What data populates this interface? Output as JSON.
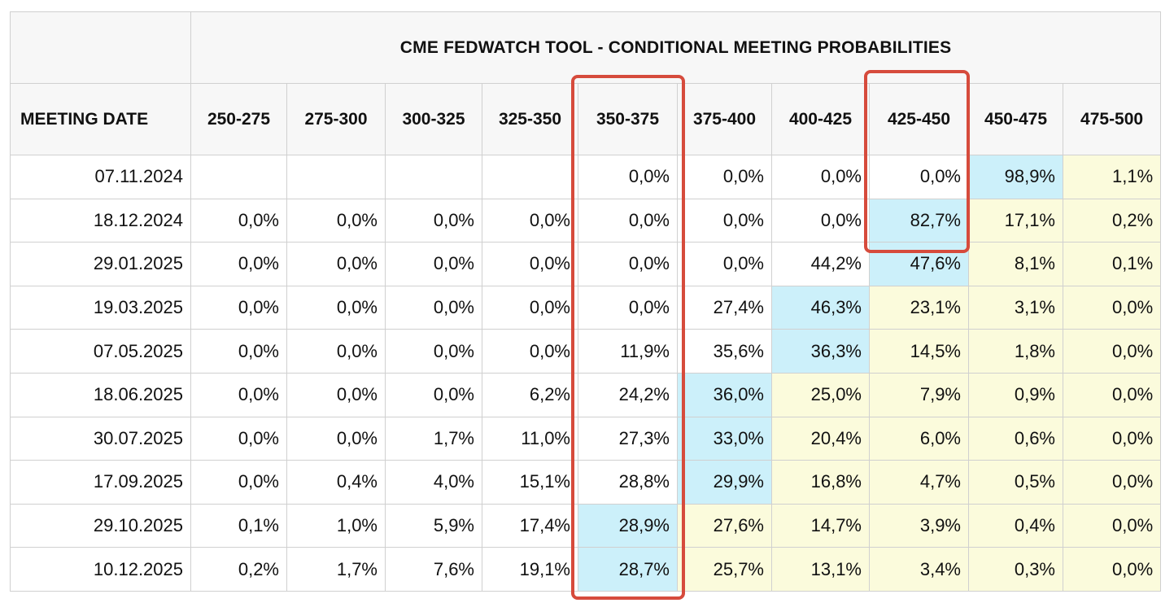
{
  "table": {
    "title": "CME FEDWATCH TOOL - CONDITIONAL MEETING PROBABILITIES",
    "date_header": "MEETING DATE",
    "ranges": [
      "250-275",
      "275-300",
      "300-325",
      "325-350",
      "350-375",
      "375-400",
      "400-425",
      "425-450",
      "450-475",
      "475-500"
    ],
    "rows": [
      {
        "date": "07.11.2024",
        "values": [
          "",
          "",
          "",
          "",
          "0,0%",
          "0,0%",
          "0,0%",
          "0,0%",
          "98,9%",
          "1,1%"
        ]
      },
      {
        "date": "18.12.2024",
        "values": [
          "0,0%",
          "0,0%",
          "0,0%",
          "0,0%",
          "0,0%",
          "0,0%",
          "0,0%",
          "82,7%",
          "17,1%",
          "0,2%"
        ]
      },
      {
        "date": "29.01.2025",
        "values": [
          "0,0%",
          "0,0%",
          "0,0%",
          "0,0%",
          "0,0%",
          "0,0%",
          "44,2%",
          "47,6%",
          "8,1%",
          "0,1%"
        ]
      },
      {
        "date": "19.03.2025",
        "values": [
          "0,0%",
          "0,0%",
          "0,0%",
          "0,0%",
          "0,0%",
          "27,4%",
          "46,3%",
          "23,1%",
          "3,1%",
          "0,0%"
        ]
      },
      {
        "date": "07.05.2025",
        "values": [
          "0,0%",
          "0,0%",
          "0,0%",
          "0,0%",
          "11,9%",
          "35,6%",
          "36,3%",
          "14,5%",
          "1,8%",
          "0,0%"
        ]
      },
      {
        "date": "18.06.2025",
        "values": [
          "0,0%",
          "0,0%",
          "0,0%",
          "6,2%",
          "24,2%",
          "36,0%",
          "25,0%",
          "7,9%",
          "0,9%",
          "0,0%"
        ]
      },
      {
        "date": "30.07.2025",
        "values": [
          "0,0%",
          "0,0%",
          "1,7%",
          "11,0%",
          "27,3%",
          "33,0%",
          "20,4%",
          "6,0%",
          "0,6%",
          "0,0%"
        ]
      },
      {
        "date": "17.09.2025",
        "values": [
          "0,0%",
          "0,4%",
          "4,0%",
          "15,1%",
          "28,8%",
          "29,9%",
          "16,8%",
          "4,7%",
          "0,5%",
          "0,0%"
        ]
      },
      {
        "date": "29.10.2025",
        "values": [
          "0,1%",
          "1,0%",
          "5,9%",
          "17,4%",
          "28,9%",
          "27,6%",
          "14,7%",
          "3,9%",
          "0,4%",
          "0,0%"
        ]
      },
      {
        "date": "10.12.2025",
        "values": [
          "0,2%",
          "1,7%",
          "7,6%",
          "19,1%",
          "28,7%",
          "25,7%",
          "13,1%",
          "3,4%",
          "0,3%",
          "0,0%"
        ]
      }
    ]
  },
  "colors": {
    "highlight_max": "#ccf0fa",
    "highlight_above": "#fbfbdc",
    "annotation_box": "#d64b3c"
  }
}
